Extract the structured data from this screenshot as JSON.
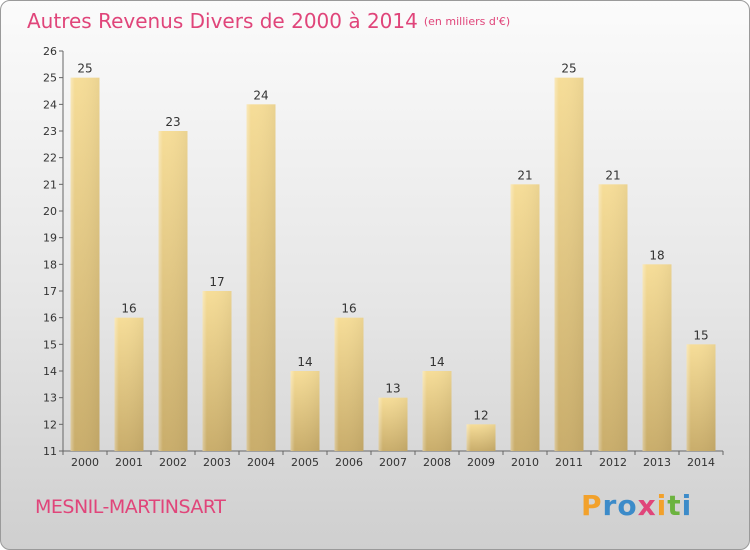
{
  "title": "Autres Revenus Divers de 2000 à 2014",
  "unit": "(en milliers d'€)",
  "commune": "MESNIL-MARTINSART",
  "logo": {
    "letters": [
      "P",
      "r",
      "o",
      "x",
      "i",
      "t",
      "i"
    ],
    "colors": [
      "#f2a12b",
      "#3c8bc9",
      "#3c8bc9",
      "#e0457a",
      "#f2a12b",
      "#6cb33f",
      "#3c8bc9"
    ]
  },
  "colors": {
    "title": "#e0457a",
    "bar_top": "#f6dd98",
    "bar_bottom": "#c9ad6b"
  },
  "chart_data": {
    "type": "bar",
    "title": "Autres Revenus Divers de 2000 à 2014",
    "unit": "(en milliers d'€)",
    "categories": [
      "2000",
      "2001",
      "2002",
      "2003",
      "2004",
      "2005",
      "2006",
      "2007",
      "2008",
      "2009",
      "2010",
      "2011",
      "2012",
      "2013",
      "2014"
    ],
    "values": [
      25,
      16,
      23,
      17,
      24,
      14,
      16,
      13,
      14,
      12,
      21,
      25,
      21,
      18,
      15
    ],
    "ylim": [
      11,
      26
    ],
    "yticks": [
      11,
      12,
      13,
      14,
      15,
      16,
      17,
      18,
      19,
      20,
      21,
      22,
      23,
      24,
      25,
      26
    ],
    "grid": false
  }
}
